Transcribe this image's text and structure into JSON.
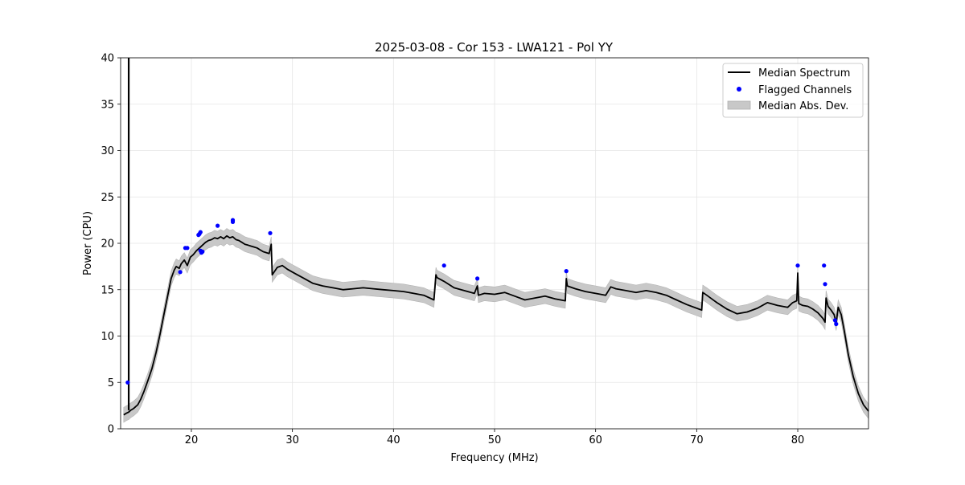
{
  "chart_data": {
    "type": "line",
    "title": "2025-03-08 - Cor 153 - LWA121 - Pol YY",
    "xlabel": "Frequency (MHz)",
    "ylabel": "Power (CPU)",
    "xlim": [
      13.0,
      87.0
    ],
    "ylim": [
      0,
      40
    ],
    "xticks": [
      20,
      30,
      40,
      50,
      60,
      70,
      80
    ],
    "yticks": [
      0,
      5,
      10,
      15,
      20,
      25,
      30,
      35,
      40
    ],
    "grid": true,
    "legend_position": "top-right",
    "legend": [
      "Median Spectrum",
      "Flagged Channels",
      "Median Abs. Dev."
    ],
    "series": [
      {
        "name": "Median Spectrum",
        "color": "#000000",
        "x": [
          13.3,
          13.6,
          13.8,
          13.9,
          13.9,
          14.0,
          14.3,
          14.7,
          15.0,
          15.3,
          15.7,
          16.1,
          16.5,
          16.9,
          17.3,
          17.7,
          18.0,
          18.3,
          18.5,
          18.8,
          19.0,
          19.3,
          19.6,
          19.9,
          20.2,
          20.5,
          20.8,
          21.1,
          21.4,
          21.7,
          22.0,
          22.3,
          22.6,
          22.9,
          23.2,
          23.5,
          23.8,
          24.1,
          24.4,
          24.7,
          25.0,
          25.3,
          25.6,
          25.9,
          26.2,
          26.5,
          26.8,
          27.1,
          27.4,
          27.7,
          27.9,
          28.0,
          28.5,
          29.0,
          29.5,
          30.0,
          30.5,
          31.0,
          31.5,
          32.0,
          33.0,
          34.0,
          35.0,
          36.0,
          37.0,
          38.0,
          39.0,
          40.0,
          41.0,
          42.0,
          43.0,
          44.0,
          44.2,
          44.3,
          45.0,
          46.0,
          47.0,
          48.0,
          48.3,
          48.4,
          49.0,
          50.0,
          51.0,
          52.0,
          53.0,
          54.0,
          55.0,
          56.0,
          57.0,
          57.1,
          57.2,
          58.0,
          59.0,
          60.0,
          61.0,
          61.5,
          62.0,
          63.0,
          64.0,
          65.0,
          66.0,
          67.0,
          68.0,
          69.0,
          70.0,
          70.5,
          70.6,
          71.0,
          72.0,
          73.0,
          74.0,
          75.0,
          76.0,
          77.0,
          78.0,
          79.0,
          79.5,
          79.9,
          80.0,
          80.1,
          80.5,
          81.0,
          81.5,
          82.0,
          82.5,
          82.7,
          82.8,
          83.0,
          83.3,
          83.6,
          83.8,
          84.0,
          84.3,
          84.6,
          85.0,
          85.5,
          86.0,
          86.5,
          87.0
        ],
        "y": [
          1.5,
          1.7,
          1.8,
          1.9,
          1.9,
          2.0,
          2.2,
          2.6,
          3.2,
          4.0,
          5.2,
          6.5,
          8.2,
          10.2,
          12.4,
          14.6,
          16.2,
          17.1,
          17.5,
          17.3,
          17.8,
          18.2,
          17.6,
          18.5,
          18.8,
          19.2,
          19.5,
          19.8,
          20.1,
          20.3,
          20.4,
          20.6,
          20.5,
          20.7,
          20.5,
          20.8,
          20.6,
          20.7,
          20.4,
          20.3,
          20.1,
          19.9,
          19.8,
          19.7,
          19.6,
          19.5,
          19.3,
          19.1,
          19.0,
          18.9,
          19.9,
          16.6,
          17.4,
          17.6,
          17.2,
          16.9,
          16.6,
          16.3,
          16.0,
          15.7,
          15.4,
          15.2,
          15.0,
          15.1,
          15.2,
          15.1,
          15.0,
          14.9,
          14.8,
          14.6,
          14.4,
          13.9,
          16.6,
          16.3,
          15.9,
          15.2,
          14.9,
          14.6,
          15.4,
          14.4,
          14.6,
          14.5,
          14.7,
          14.3,
          13.9,
          14.1,
          14.3,
          14.0,
          13.8,
          16.2,
          15.4,
          15.1,
          14.8,
          14.6,
          14.4,
          15.3,
          15.1,
          14.9,
          14.7,
          14.9,
          14.7,
          14.4,
          13.9,
          13.4,
          13.0,
          12.8,
          14.7,
          14.4,
          13.6,
          12.9,
          12.4,
          12.6,
          13.0,
          13.6,
          13.3,
          13.1,
          13.6,
          13.8,
          16.8,
          13.5,
          13.3,
          13.2,
          12.9,
          12.5,
          11.9,
          11.5,
          14.1,
          13.2,
          12.8,
          12.3,
          11.4,
          13.1,
          12.3,
          10.6,
          8.0,
          5.6,
          3.8,
          2.6,
          1.9
        ]
      },
      {
        "name": "Flagged Channels",
        "color": "#0000ff",
        "x": [
          13.7,
          18.9,
          19.4,
          19.6,
          20.7,
          20.8,
          20.9,
          20.9,
          21.0,
          21.1,
          22.6,
          24.1,
          24.1,
          27.8,
          45.0,
          48.3,
          57.1,
          80.0,
          82.6,
          82.7,
          83.7,
          83.8
        ],
        "y": [
          5.0,
          16.9,
          19.5,
          19.5,
          20.9,
          21.0,
          21.2,
          19.2,
          19.0,
          19.1,
          21.9,
          22.5,
          22.3,
          21.1,
          17.6,
          16.2,
          17.0,
          17.6,
          17.6,
          15.6,
          11.7,
          11.3
        ]
      }
    ],
    "mad": {
      "name": "Median Abs. Dev.",
      "color": "#c8c8c8",
      "half_width": 0.8
    },
    "spike": {
      "x": 13.8,
      "y": 40
    }
  }
}
